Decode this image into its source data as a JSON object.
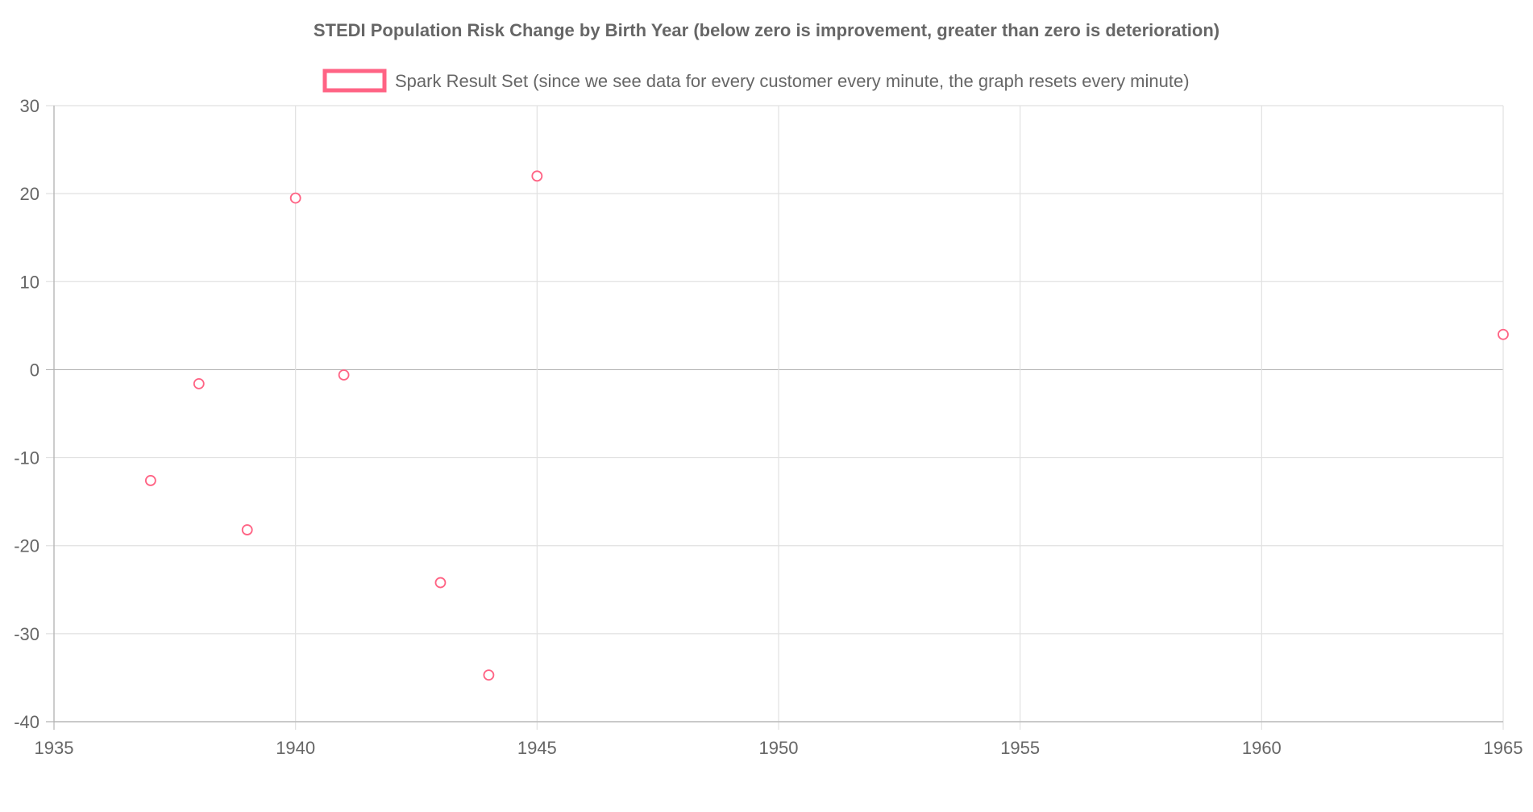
{
  "chart_data": {
    "type": "scatter",
    "title": "STEDI Population Risk Change by Birth Year (below zero is improvement, greater than zero is deterioration)",
    "xlabel": "",
    "ylabel": "",
    "xlim": [
      1935,
      1965
    ],
    "ylim": [
      -40,
      30
    ],
    "x_ticks": [
      1935,
      1940,
      1945,
      1950,
      1955,
      1960,
      1965
    ],
    "y_ticks": [
      30,
      20,
      10,
      0,
      -10,
      -20,
      -30,
      -40
    ],
    "grid": true,
    "legend_position": "top-center",
    "series": [
      {
        "name": "Spark Result Set (since we see data for every customer every minute, the graph resets every minute)",
        "color": "#ff6384",
        "points": [
          {
            "x": 1937,
            "y": -12.6
          },
          {
            "x": 1938,
            "y": -1.6
          },
          {
            "x": 1939,
            "y": -18.2
          },
          {
            "x": 1940,
            "y": 19.5
          },
          {
            "x": 1941,
            "y": -0.6
          },
          {
            "x": 1943,
            "y": -24.2
          },
          {
            "x": 1944,
            "y": -34.7
          },
          {
            "x": 1945,
            "y": 22.0
          },
          {
            "x": 1965,
            "y": 4.0
          }
        ]
      }
    ]
  },
  "colors": {
    "grid": "#e1e1e1",
    "zero_line": "#b4b4b4",
    "text": "#666666",
    "series": "#ff6384"
  }
}
